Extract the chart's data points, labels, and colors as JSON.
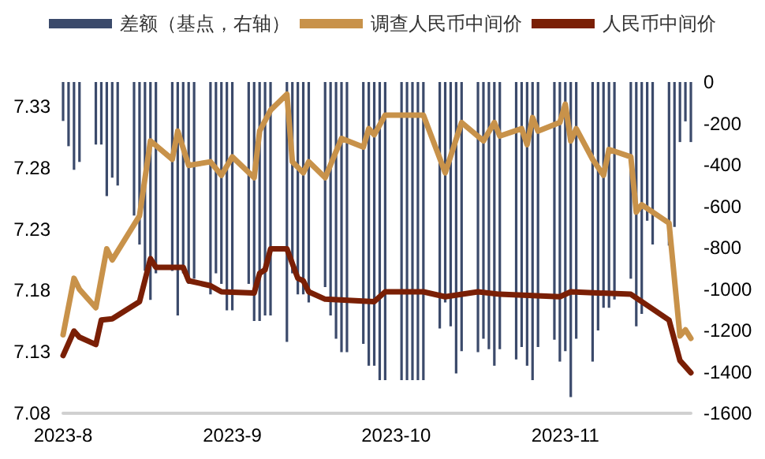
{
  "chart_data": {
    "type": "bar",
    "x": [
      "2023-08-01",
      "2023-08-02",
      "2023-08-03",
      "2023-08-04",
      "2023-08-07",
      "2023-08-08",
      "2023-08-09",
      "2023-08-10",
      "2023-08-11",
      "2023-08-14",
      "2023-08-15",
      "2023-08-16",
      "2023-08-17",
      "2023-08-18",
      "2023-08-21",
      "2023-08-22",
      "2023-08-23",
      "2023-08-24",
      "2023-08-25",
      "2023-08-28",
      "2023-08-29",
      "2023-08-30",
      "2023-08-31",
      "2023-09-01",
      "2023-09-04",
      "2023-09-05",
      "2023-09-06",
      "2023-09-07",
      "2023-09-08",
      "2023-09-11",
      "2023-09-12",
      "2023-09-13",
      "2023-09-14",
      "2023-09-15",
      "2023-09-18",
      "2023-09-19",
      "2023-09-20",
      "2023-09-21",
      "2023-09-22",
      "2023-09-25",
      "2023-09-26",
      "2023-09-27",
      "2023-09-28",
      "2023-09-29",
      "2023-10-02",
      "2023-10-03",
      "2023-10-04",
      "2023-10-05",
      "2023-10-06",
      "2023-10-09",
      "2023-10-10",
      "2023-10-11",
      "2023-10-12",
      "2023-10-13",
      "2023-10-16",
      "2023-10-17",
      "2023-10-18",
      "2023-10-19",
      "2023-10-20",
      "2023-10-23",
      "2023-10-24",
      "2023-10-25",
      "2023-10-26",
      "2023-10-27",
      "2023-10-30",
      "2023-10-31",
      "2023-11-01",
      "2023-11-02",
      "2023-11-03",
      "2023-11-06",
      "2023-11-07",
      "2023-11-08",
      "2023-11-09",
      "2023-11-10",
      "2023-11-13",
      "2023-11-14",
      "2023-11-15",
      "2023-11-16",
      "2023-11-17",
      "2023-11-20",
      "2023-11-21",
      "2023-11-22",
      "2023-11-23",
      "2023-11-24"
    ],
    "series": [
      {
        "name": "差额（基点，右轴）",
        "color": "#3b4a6b",
        "axis": "y2",
        "values": [
          -188,
          -310,
          -424,
          -386,
          -302,
          -302,
          -551,
          -462,
          -500,
          -645,
          -785,
          -912,
          -1052,
          -924,
          -912,
          -1128,
          -924,
          -975,
          -950,
          -1026,
          -924,
          -975,
          -1103,
          -1103,
          -975,
          -1154,
          -1154,
          -1128,
          -1128,
          -1255,
          -924,
          -1026,
          -1026,
          -1065,
          -990,
          -1128,
          -1240,
          -1305,
          -1305,
          -1265,
          -1370,
          -1370,
          -1440,
          -1440,
          -1440,
          -1440,
          -1440,
          -1440,
          -1440,
          -1190,
          -1065,
          -1180,
          -1408,
          -1300,
          -1305,
          -1240,
          -1290,
          -1370,
          -1290,
          -1340,
          -1280,
          -1370,
          -1440,
          -1280,
          -1245,
          -1350,
          -1300,
          -1522,
          -1240,
          -1350,
          -1200,
          -1090,
          -1090,
          -1050,
          -950,
          -1180,
          -1120,
          -670,
          -785,
          -790,
          -700,
          -290,
          -190,
          -290
        ]
      },
      {
        "type": "line",
        "name": "调查人民币中间价",
        "color": "#c8924a",
        "x": [
          "2023-08-01",
          "2023-08-03",
          "2023-08-04",
          "2023-08-07",
          "2023-08-09",
          "2023-08-10",
          "2023-08-15",
          "2023-08-17",
          "2023-08-21",
          "2023-08-22",
          "2023-08-24",
          "2023-08-28",
          "2023-08-30",
          "2023-09-01",
          "2023-09-05",
          "2023-09-06",
          "2023-09-08",
          "2023-09-11",
          "2023-09-12",
          "2023-09-14",
          "2023-09-15",
          "2023-09-18",
          "2023-09-21",
          "2023-09-25",
          "2023-09-26",
          "2023-09-27",
          "2023-09-29",
          "2023-10-06",
          "2023-10-10",
          "2023-10-13",
          "2023-10-17",
          "2023-10-19",
          "2023-10-20",
          "2023-10-24",
          "2023-10-25",
          "2023-10-26",
          "2023-10-27",
          "2023-10-31",
          "2023-11-01",
          "2023-11-02",
          "2023-11-03",
          "2023-11-06",
          "2023-11-08",
          "2023-11-09",
          "2023-11-13",
          "2023-11-14",
          "2023-11-15",
          "2023-11-20",
          "2023-11-22",
          "2023-11-23",
          "2023-11-24"
        ],
        "values": [
          7.144,
          7.19,
          7.181,
          7.166,
          7.214,
          7.205,
          7.241,
          7.302,
          7.287,
          7.31,
          7.282,
          7.285,
          7.274,
          7.289,
          7.272,
          7.31,
          7.327,
          7.34,
          7.285,
          7.276,
          7.285,
          7.272,
          7.304,
          7.297,
          7.312,
          7.307,
          7.323,
          7.323,
          7.276,
          7.317,
          7.302,
          7.317,
          7.306,
          7.312,
          7.299,
          7.321,
          7.31,
          7.317,
          7.332,
          7.302,
          7.312,
          7.287,
          7.274,
          7.295,
          7.289,
          7.244,
          7.25,
          7.235,
          7.143,
          7.148,
          7.141
        ]
      },
      {
        "type": "line",
        "name": "人民币中间价",
        "color": "#7a1f05",
        "x": [
          "2023-08-01",
          "2023-08-03",
          "2023-08-04",
          "2023-08-07",
          "2023-08-08",
          "2023-08-10",
          "2023-08-15",
          "2023-08-17",
          "2023-08-18",
          "2023-08-23",
          "2023-08-24",
          "2023-08-28",
          "2023-08-30",
          "2023-09-05",
          "2023-09-06",
          "2023-09-07",
          "2023-09-08",
          "2023-09-11",
          "2023-09-13",
          "2023-09-14",
          "2023-09-15",
          "2023-09-18",
          "2023-09-27",
          "2023-09-29",
          "2023-10-06",
          "2023-10-10",
          "2023-10-16",
          "2023-10-20",
          "2023-10-31",
          "2023-11-02",
          "2023-11-13",
          "2023-11-16",
          "2023-11-20",
          "2023-11-22",
          "2023-11-23",
          "2023-11-24"
        ],
        "values": [
          7.127,
          7.147,
          7.142,
          7.136,
          7.156,
          7.157,
          7.171,
          7.206,
          7.199,
          7.199,
          7.188,
          7.184,
          7.179,
          7.178,
          7.194,
          7.197,
          7.214,
          7.214,
          7.19,
          7.188,
          7.179,
          7.173,
          7.171,
          7.179,
          7.179,
          7.175,
          7.179,
          7.177,
          7.175,
          7.179,
          7.177,
          7.168,
          7.156,
          7.123,
          7.118,
          7.113
        ]
      }
    ],
    "xlim": [
      "2023-08-01",
      "2023-11-24"
    ],
    "xticks": [
      {
        "value": "2023-08-01",
        "label": "2023-8"
      },
      {
        "value": "2023-09-01",
        "label": "2023-9"
      },
      {
        "value": "2023-10-01",
        "label": "2023-10"
      },
      {
        "value": "2023-11-01",
        "label": "2023-11"
      }
    ],
    "ylim": [
      7.08,
      7.35
    ],
    "yticks": [
      7.08,
      7.13,
      7.18,
      7.23,
      7.28,
      7.33
    ],
    "y2lim": [
      -1600,
      0
    ],
    "y2ticks": [
      -1600,
      -1400,
      -1200,
      -1000,
      -800,
      -600,
      -400,
      -200,
      0
    ],
    "legend": "top",
    "marker": "none",
    "line_style": "solid"
  }
}
